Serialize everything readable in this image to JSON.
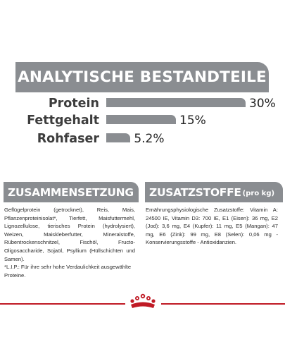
{
  "analysis": {
    "title": "ANALYTISCHE BESTANDTEILE",
    "items": [
      {
        "label": "Protein",
        "value": "30%",
        "percent": 30
      },
      {
        "label": "Fettgehalt",
        "value": "15%",
        "percent": 15
      },
      {
        "label": "Rohfaser",
        "value": "5.2%",
        "percent": 5.2
      }
    ]
  },
  "composition": {
    "title": "ZUSAMMENSETZUNG",
    "text": "Geflügelprotein (getrocknet), Reis, Mais, Pflanzenproteinisolat*, Tierfett, Maisfuttermehl, Lignozellulose, tierisches Protein (hydrolysiert), Weizen, Maiskleberfutter, Mineralstoffe, Rübentrockenschnitzel, Fischöl, Fructo-Oligosaccharide, Sojaöl, Psyllium (Hüllschichten und Samen).",
    "footnote": "*L.I.P.: Für ihre sehr hohe Verdaulichkeit ausgewählte Proteine."
  },
  "additives": {
    "title": "ZUSATZSTOFFE",
    "title_suffix": "(pro kg)",
    "text": "Ernährungsphysiologische Zusatzstoffe: Vitamin A: 24500 IE, Vitamin D3: 700 IE, E1 (Eisen): 36 mg, E2 (Jod): 3,6 mg, E4 (Kupfer): 11 mg, E5 (Mangan): 47 mg, E6 (Zink): 99 mg, E8 (Selen): 0,06 mg - Konservierungsstoffe - Antioxidanzien."
  },
  "colors": {
    "gray": "#8a8d91",
    "brand_red": "#c01a25"
  },
  "logo": {
    "icon": "royal-canin-crown-icon"
  }
}
